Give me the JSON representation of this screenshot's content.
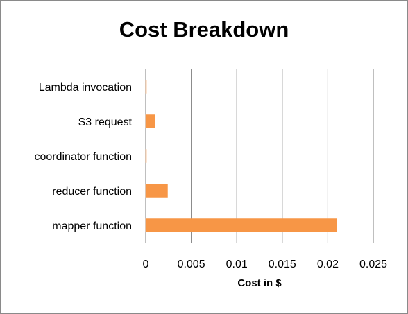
{
  "chart_data": {
    "type": "bar",
    "orientation": "horizontal",
    "title": "Cost Breakdown",
    "xlabel": "Cost in $",
    "ylabel": "",
    "categories": [
      "Lambda invocation",
      "S3 request",
      "coordinator function",
      "reducer function",
      "mapper function"
    ],
    "values": [
      2e-05,
      0.001,
      5e-05,
      0.0024,
      0.021
    ],
    "xlim": [
      0,
      0.025
    ],
    "x_ticks": [
      "0",
      "0.005",
      "0.01",
      "0.015",
      "0.02",
      "0.025"
    ],
    "grid": "vertical major gridlines",
    "legend": "none",
    "colors": {
      "bar": "#f79646",
      "bar_border": "#f79646",
      "grid": "#7f7f7f",
      "axis": "#7f7f7f"
    }
  }
}
